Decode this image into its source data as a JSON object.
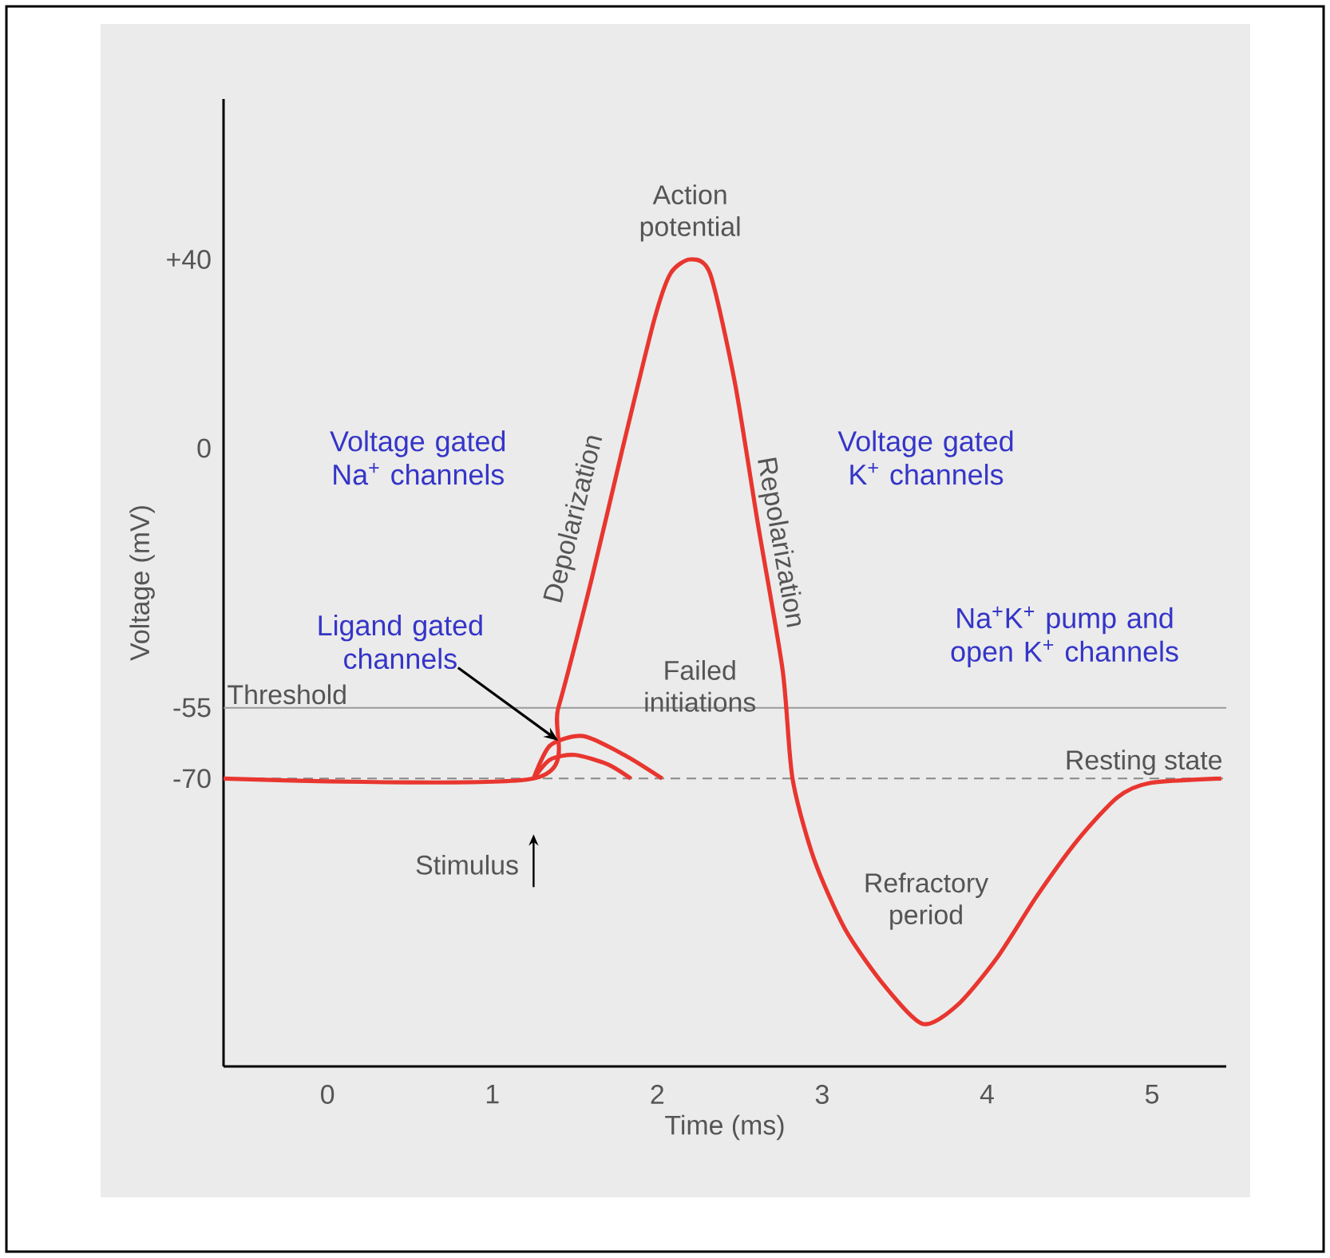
{
  "chart_data": {
    "type": "line",
    "xlabel": "Time (ms)",
    "ylabel": "Voltage (mV)",
    "xlim": [
      -0.63,
      5.45
    ],
    "ylim": [
      -131,
      74
    ],
    "xticks": [
      0,
      1,
      2,
      3,
      4,
      5
    ],
    "yticks": [
      {
        "value": 40,
        "label": "+40"
      },
      0,
      -55,
      -70
    ],
    "series": [
      {
        "color": "#e8362f",
        "x": [
          -0.63,
          1.25,
          1.4,
          1.6,
          1.79,
          1.98,
          2.08,
          2.2,
          2.32,
          2.47,
          2.61,
          2.76,
          2.82,
          2.95,
          3.14,
          3.38,
          3.61,
          3.82,
          4.06,
          4.3,
          4.55,
          4.79,
          4.98,
          5.42
        ],
        "values": [
          -70,
          -70,
          -55,
          -28,
          0,
          27,
          37,
          40,
          37,
          14,
          -16,
          -47,
          -70,
          -87,
          -102,
          -114,
          -122,
          -118,
          -108,
          -95,
          -83,
          -74,
          -71,
          -70
        ]
      },
      {
        "color": "#e8362f",
        "x": [
          1.25,
          1.35,
          1.55,
          1.8,
          2.03
        ],
        "values": [
          -70,
          -63,
          -61,
          -65,
          -70
        ]
      },
      {
        "color": "#e8362f",
        "x": [
          1.25,
          1.35,
          1.5,
          1.7,
          1.84
        ],
        "values": [
          -70,
          -66,
          -65,
          -67,
          -70
        ]
      }
    ],
    "ref_lines": [
      {
        "axis": "y",
        "value": -55,
        "label": "Threshold",
        "color": "#9a9a9a",
        "line_style": "solid"
      },
      {
        "axis": "y",
        "value": -70,
        "label": "Resting state",
        "color": "#888888",
        "line_style": "dashed"
      }
    ],
    "annotations": [
      {
        "text": "Action potential",
        "x": 2.2,
        "y": 40
      },
      "Depolarization",
      "Repolarization",
      {
        "text": "Failed initiations",
        "x": 1.55,
        "y": -61
      },
      "Refractory period",
      "Voltage gated Na$^{+}$ channels",
      "Voltage gated K$^{+}$ channels",
      {
        "text": "Ligand gated channels",
        "x": 1.4,
        "y": -62
      },
      "Na$^{+}$K$^{+}$ pump and open K$^{+}$ channels",
      {
        "text": "Stimulus",
        "x": 1.25,
        "y": -70
      }
    ]
  }
}
